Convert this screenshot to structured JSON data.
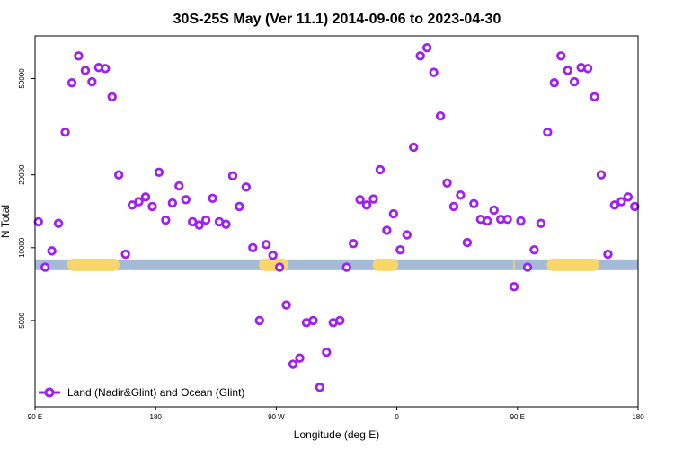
{
  "chart_data": {
    "type": "scatter",
    "title": "30S-25S May (Ver 11.1)   2014-09-06 to 2023-04-30",
    "xlabel": "Longitude (deg E)",
    "ylabel": "N Total",
    "y_scale": "log",
    "xlim": [
      90,
      540
    ],
    "ylim": [
      2200,
      75000
    ],
    "x_ticks": [
      {
        "value": 90,
        "label": "90 E"
      },
      {
        "value": 180,
        "label": "180"
      },
      {
        "value": 270,
        "label": "90 W"
      },
      {
        "value": 360,
        "label": "0"
      },
      {
        "value": 450,
        "label": "90 E"
      },
      {
        "value": 540,
        "label": "180"
      }
    ],
    "y_ticks": [
      {
        "value": 5000,
        "label": "5000"
      },
      {
        "value": 10000,
        "label": "10000"
      },
      {
        "value": 20000,
        "label": "20000"
      },
      {
        "value": 50000,
        "label": "50000"
      }
    ],
    "series": [
      {
        "name": "Land (Nadir&Glint) and Ocean (Glint)",
        "color": "#a020f0",
        "x": [
          92.5,
          97.5,
          102.5,
          107.5,
          112.5,
          117.5,
          122.5,
          127.5,
          132.5,
          137.5,
          142.5,
          147.5,
          152.5,
          157.5,
          162.5,
          167.5,
          172.5,
          177.5,
          182.5,
          187.5,
          192.5,
          197.5,
          202.5,
          207.5,
          212.5,
          217.5,
          222.5,
          227.5,
          232.5,
          237.5,
          242.5,
          247.5,
          252.5,
          257.5,
          262.5,
          267.5,
          272.5,
          277.5,
          282.5,
          287.5,
          292.5,
          297.5,
          302.5,
          307.5,
          312.5,
          317.5,
          322.5,
          327.5,
          332.5,
          337.5,
          342.5,
          347.5,
          352.5,
          357.5,
          362.5,
          367.5,
          372.5,
          377.5,
          382.5,
          387.5,
          392.5,
          397.5,
          402.5,
          407.5,
          412.5,
          417.5,
          422.5,
          427.5,
          432.5,
          437.5,
          442.5,
          447.5,
          452.5,
          457.5,
          462.5,
          467.5,
          472.5,
          477.5,
          482.5,
          487.5,
          492.5,
          497.5,
          502.5,
          507.5,
          512.5,
          517.5,
          522.5,
          527.5,
          532.5,
          537.5
        ],
        "y": [
          12800,
          8300,
          9700,
          12600,
          30000,
          48000,
          62000,
          54000,
          48500,
          55500,
          55000,
          42000,
          20000,
          9400,
          15000,
          15500,
          16200,
          14800,
          20500,
          13000,
          15300,
          18000,
          15800,
          12800,
          12400,
          13000,
          16000,
          12800,
          12500,
          19800,
          14800,
          17800,
          10000,
          5000,
          10300,
          9300,
          8300,
          5800,
          3300,
          3500,
          4900,
          5000,
          2650,
          3700,
          4900,
          5000,
          8300,
          10400,
          15800,
          15000,
          15900,
          21000,
          11800,
          13800,
          9800,
          11300,
          26000,
          62000,
          67000,
          53000,
          35000,
          18500,
          14800,
          16500,
          10500,
          15200,
          13100,
          12900,
          14300,
          13100,
          13100,
          6900,
          12900,
          8300,
          9800,
          12600,
          30000,
          48000,
          62000,
          54000,
          48500,
          55500,
          55000,
          42000,
          20000,
          9400,
          15000,
          15500,
          16200,
          14800
        ]
      }
    ],
    "background_bands": {
      "y_value": 8500,
      "ocean_color": "#a4bbd8",
      "land_color": "#f8d66a",
      "land_segments": [
        [
          114,
          153
        ],
        [
          257,
          279
        ],
        [
          342,
          361
        ],
        [
          447,
          448
        ],
        [
          472,
          511
        ]
      ]
    },
    "legend": {
      "position": "bottom-left",
      "label": "Land (Nadir&Glint) and Ocean (Glint)"
    }
  }
}
